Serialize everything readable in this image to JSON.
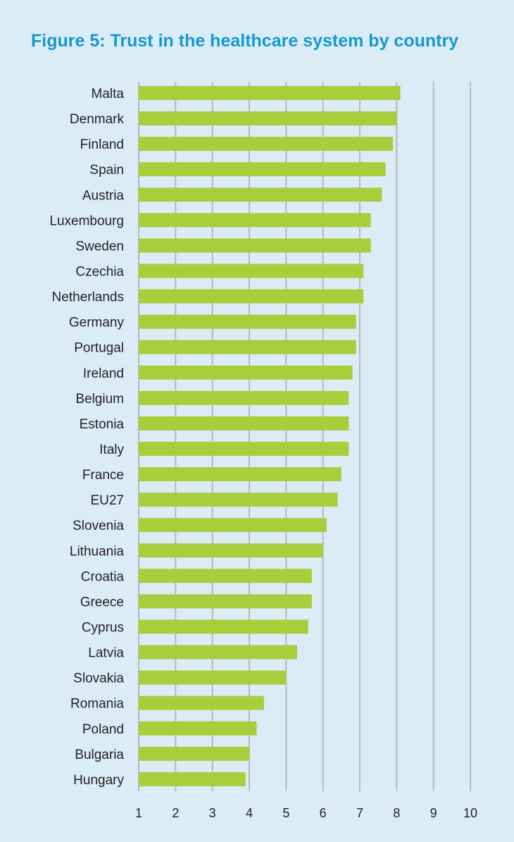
{
  "chart_data": {
    "type": "bar",
    "orientation": "horizontal",
    "title": "Figure 5: Trust in the healthcare system by country",
    "xlabel": "",
    "ylabel": "",
    "xlim": [
      1,
      10
    ],
    "x_ticks": [
      "1",
      "2",
      "3",
      "4",
      "5",
      "6",
      "7",
      "8",
      "9",
      "10"
    ],
    "grid": "vertical",
    "colors": {
      "bar": "#a8cf3b",
      "grid": "#b4b8bb",
      "title": "#1598d0",
      "background": "#daedf7"
    },
    "categories": [
      "Malta",
      "Denmark",
      "Finland",
      "Spain",
      "Austria",
      "Luxembourg",
      "Sweden",
      "Czechia",
      "Netherlands",
      "Germany",
      "Portugal",
      "Ireland",
      "Belgium",
      "Estonia",
      "Italy",
      "France",
      "EU27",
      "Slovenia",
      "Lithuania",
      "Croatia",
      "Greece",
      "Cyprus",
      "Latvia",
      "Slovakia",
      "Romania",
      "Poland",
      "Bulgaria",
      "Hungary"
    ],
    "values": [
      8.1,
      8.0,
      7.9,
      7.7,
      7.6,
      7.3,
      7.3,
      7.1,
      7.1,
      6.9,
      6.9,
      6.8,
      6.7,
      6.7,
      6.7,
      6.5,
      6.4,
      6.1,
      6.0,
      5.7,
      5.7,
      5.6,
      5.3,
      5.0,
      4.4,
      4.2,
      4.0,
      3.9
    ]
  }
}
